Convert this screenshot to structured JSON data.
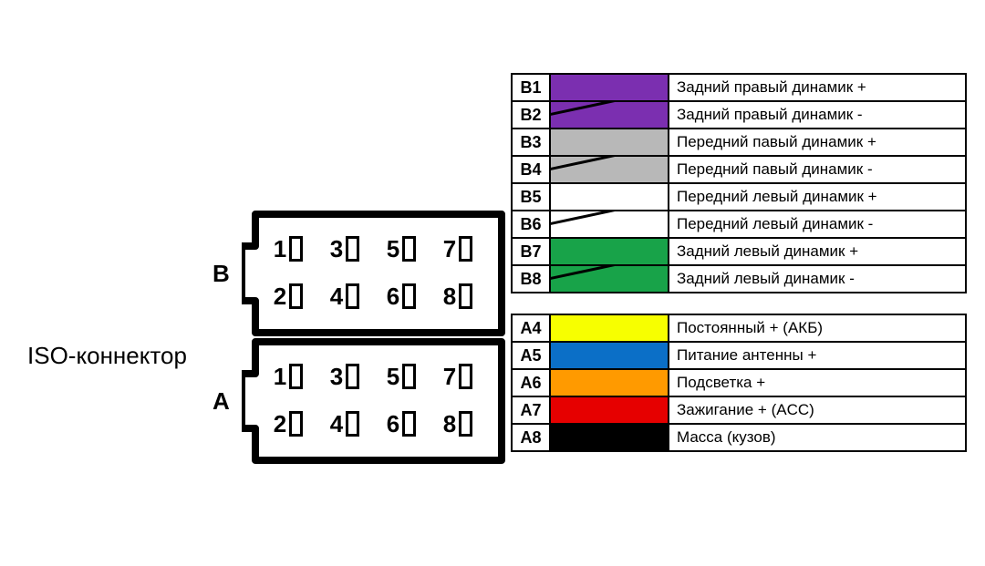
{
  "title_label": "ISO-коннектор",
  "connector": {
    "sections": [
      {
        "label": "B",
        "pins": [
          "1",
          "3",
          "5",
          "7",
          "2",
          "4",
          "6",
          "8"
        ]
      },
      {
        "label": "A",
        "pins": [
          "1",
          "3",
          "5",
          "7",
          "2",
          "4",
          "6",
          "8"
        ]
      }
    ],
    "outline_stroke": "#000000",
    "outline_width": 8
  },
  "legend_groups": [
    {
      "rows": [
        {
          "pin": "B1",
          "color": "#7b2fb0",
          "stripe": false,
          "text": "Задний правый динамик +"
        },
        {
          "pin": "B2",
          "color": "#7b2fb0",
          "stripe": true,
          "text": "Задний правый динамик -"
        },
        {
          "pin": "B3",
          "color": "#b8b8b8",
          "stripe": false,
          "text": "Передний павый динамик +"
        },
        {
          "pin": "B4",
          "color": "#b8b8b8",
          "stripe": true,
          "text": "Передний павый динамик -"
        },
        {
          "pin": "B5",
          "color": "#ffffff",
          "stripe": false,
          "text": "Передний левый динамик +"
        },
        {
          "pin": "B6",
          "color": "#ffffff",
          "stripe": true,
          "text": "Передний левый динамик -"
        },
        {
          "pin": "B7",
          "color": "#18a349",
          "stripe": false,
          "text": "Задний левый динамик +"
        },
        {
          "pin": "B8",
          "color": "#18a349",
          "stripe": true,
          "text": "Задний левый динамик -"
        }
      ]
    },
    {
      "rows": [
        {
          "pin": "A4",
          "color": "#f7ff00",
          "stripe": false,
          "text": "Постоянный + (АКБ)"
        },
        {
          "pin": "A5",
          "color": "#0b6fc7",
          "stripe": false,
          "text": "Питание антенны +"
        },
        {
          "pin": "A6",
          "color": "#ff9a00",
          "stripe": false,
          "text": "Подсветка +"
        },
        {
          "pin": "A7",
          "color": "#e60000",
          "stripe": false,
          "text": "Зажигание + (ACC)"
        },
        {
          "pin": "A8",
          "color": "#000000",
          "stripe": false,
          "text": "Масса (кузов)"
        }
      ]
    }
  ],
  "colors": {
    "background": "#ffffff",
    "text": "#000000",
    "border": "#000000"
  },
  "typography": {
    "label_fontsize": 26,
    "legend_pin_fontsize": 18,
    "legend_text_fontsize": 17
  }
}
